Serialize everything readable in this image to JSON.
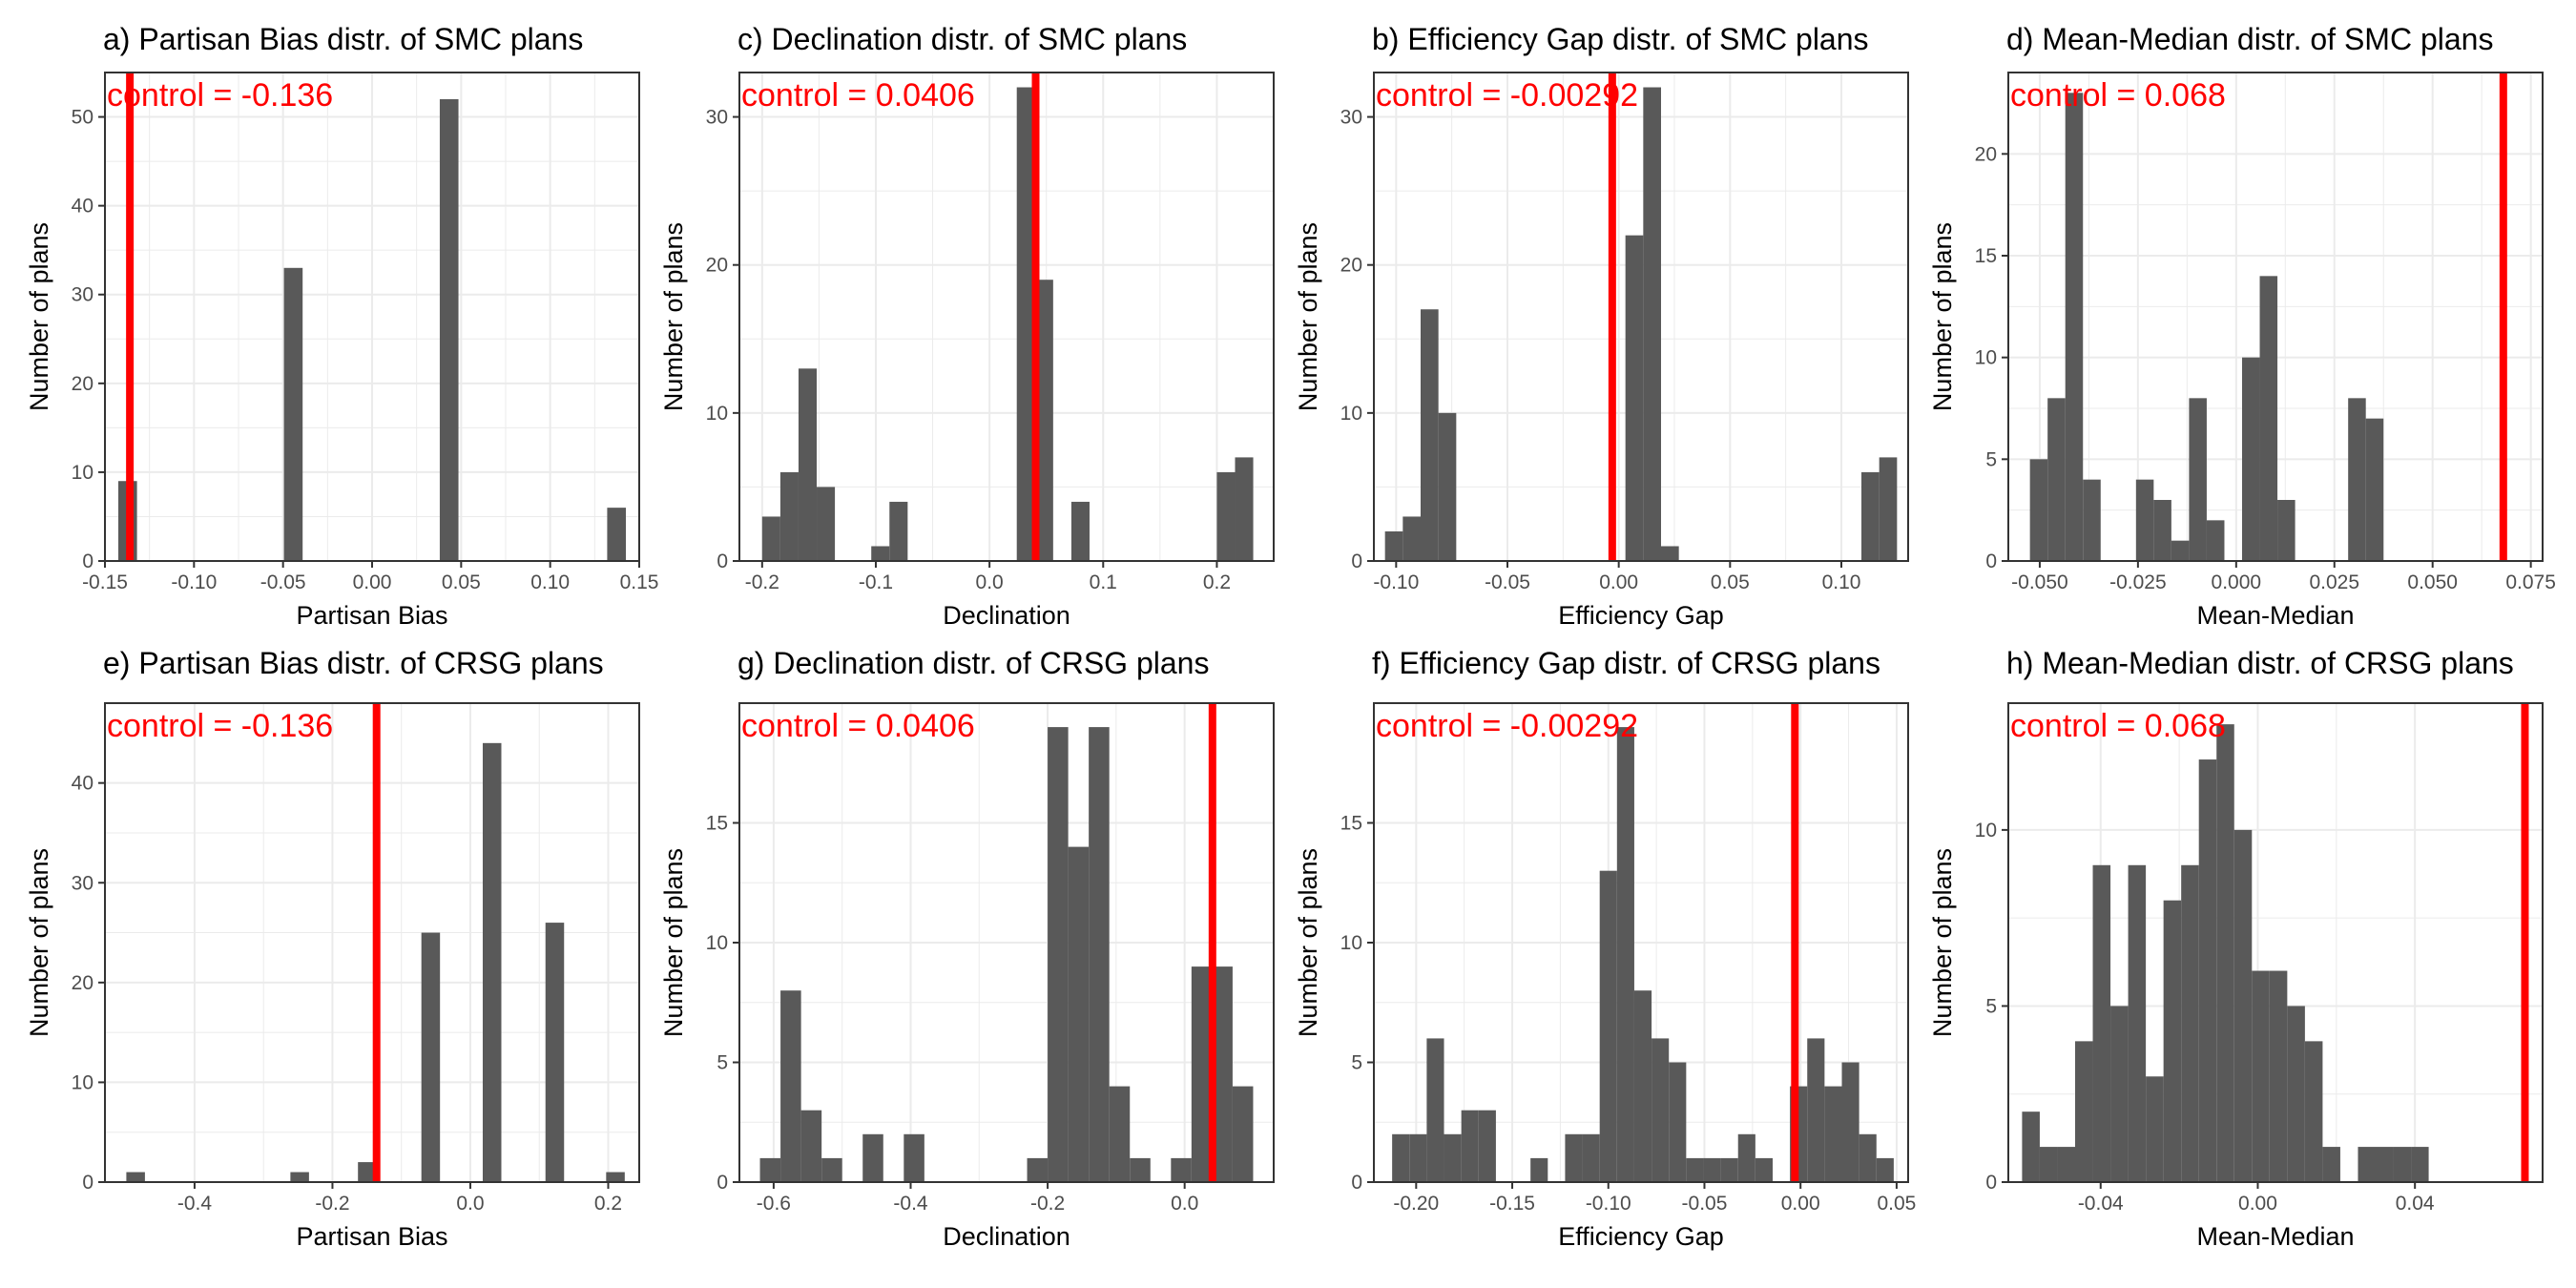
{
  "figure": {
    "background": "#ffffff"
  },
  "style": {
    "bar_color": "#595959",
    "control_color": "#ff0000",
    "grid_color": "#ebebeb",
    "panel_border": "#333333"
  },
  "chart_data": [
    {
      "type": "bar",
      "title": "a) Partisan Bias distr. of SMC plans",
      "control_label": "control = -0.136",
      "control_value": -0.136,
      "xlabel": "Partisan Bias",
      "ylabel": "Number of plans",
      "xlim": [
        -0.15,
        0.15
      ],
      "ylim": [
        0,
        55
      ],
      "xticks": [
        -0.15,
        -0.1,
        -0.05,
        0.0,
        0.05,
        0.1,
        0.15
      ],
      "xtick_labels": [
        "-0.15",
        "-0.10",
        "-0.05",
        "0.00",
        "0.05",
        "0.10",
        "0.15"
      ],
      "yticks": [
        0,
        10,
        20,
        30,
        40,
        50
      ],
      "ytick_labels": [
        "0",
        "10",
        "20",
        "30",
        "40",
        "50"
      ],
      "bars": [
        {
          "x0": -0.1425,
          "x1": -0.132,
          "count": 9
        },
        {
          "x0": -0.0495,
          "x1": -0.039,
          "count": 33
        },
        {
          "x0": 0.038,
          "x1": 0.0485,
          "count": 52
        },
        {
          "x0": 0.132,
          "x1": 0.1425,
          "count": 6
        }
      ]
    },
    {
      "type": "bar",
      "title": "c) Declination distr. of SMC plans",
      "control_label": "control = 0.0406",
      "control_value": 0.0406,
      "xlabel": "Declination",
      "ylabel": "Number of plans",
      "xlim": [
        -0.22,
        0.25
      ],
      "ylim": [
        0,
        33
      ],
      "xticks": [
        -0.2,
        -0.1,
        0.0,
        0.1,
        0.2
      ],
      "xtick_labels": [
        "-0.2",
        "-0.1",
        "0.0",
        "0.1",
        "0.2"
      ],
      "yticks": [
        0,
        10,
        20,
        30
      ],
      "ytick_labels": [
        "0",
        "10",
        "20",
        "30"
      ],
      "bars": [
        {
          "x0": -0.2,
          "x1": -0.184,
          "count": 3
        },
        {
          "x0": -0.184,
          "x1": -0.168,
          "count": 6
        },
        {
          "x0": -0.168,
          "x1": -0.152,
          "count": 13
        },
        {
          "x0": -0.152,
          "x1": -0.136,
          "count": 5
        },
        {
          "x0": -0.104,
          "x1": -0.088,
          "count": 1
        },
        {
          "x0": -0.088,
          "x1": -0.072,
          "count": 4
        },
        {
          "x0": 0.024,
          "x1": 0.04,
          "count": 32
        },
        {
          "x0": 0.04,
          "x1": 0.056,
          "count": 19
        },
        {
          "x0": 0.072,
          "x1": 0.088,
          "count": 4
        },
        {
          "x0": 0.2,
          "x1": 0.216,
          "count": 6
        },
        {
          "x0": 0.216,
          "x1": 0.232,
          "count": 7
        }
      ]
    },
    {
      "type": "bar",
      "title": "b) Efficiency Gap distr. of SMC plans",
      "control_label": "control = -0.00292",
      "control_value": -0.00292,
      "xlabel": "Efficiency Gap",
      "ylabel": "Number of plans",
      "xlim": [
        -0.11,
        0.13
      ],
      "ylim": [
        0,
        33
      ],
      "xticks": [
        -0.1,
        -0.05,
        0.0,
        0.05,
        0.1
      ],
      "xtick_labels": [
        "-0.10",
        "-0.05",
        "0.00",
        "0.05",
        "0.10"
      ],
      "yticks": [
        0,
        10,
        20,
        30
      ],
      "ytick_labels": [
        "0",
        "10",
        "20",
        "30"
      ],
      "bars": [
        {
          "x0": -0.105,
          "x1": -0.097,
          "count": 2
        },
        {
          "x0": -0.097,
          "x1": -0.089,
          "count": 3
        },
        {
          "x0": -0.089,
          "x1": -0.081,
          "count": 17
        },
        {
          "x0": -0.081,
          "x1": -0.073,
          "count": 10
        },
        {
          "x0": 0.003,
          "x1": 0.011,
          "count": 22
        },
        {
          "x0": 0.011,
          "x1": 0.019,
          "count": 32
        },
        {
          "x0": 0.019,
          "x1": 0.027,
          "count": 1
        },
        {
          "x0": 0.109,
          "x1": 0.117,
          "count": 6
        },
        {
          "x0": 0.117,
          "x1": 0.125,
          "count": 7
        }
      ]
    },
    {
      "type": "bar",
      "title": "d) Mean-Median distr. of SMC plans",
      "control_label": "control = 0.068",
      "control_value": 0.068,
      "xlabel": "Mean-Median",
      "ylabel": "Number of plans",
      "xlim": [
        -0.058,
        0.078
      ],
      "ylim": [
        0,
        24
      ],
      "xticks": [
        -0.05,
        -0.025,
        0.0,
        0.025,
        0.05,
        0.075
      ],
      "xtick_labels": [
        "-0.050",
        "-0.025",
        "0.000",
        "0.025",
        "0.050",
        "0.075"
      ],
      "yticks": [
        0,
        5,
        10,
        15,
        20
      ],
      "ytick_labels": [
        "0",
        "5",
        "10",
        "15",
        "20"
      ],
      "bars": [
        {
          "x0": -0.0525,
          "x1": -0.048,
          "count": 5
        },
        {
          "x0": -0.048,
          "x1": -0.0435,
          "count": 8
        },
        {
          "x0": -0.0435,
          "x1": -0.039,
          "count": 23
        },
        {
          "x0": -0.039,
          "x1": -0.0345,
          "count": 4
        },
        {
          "x0": -0.0255,
          "x1": -0.021,
          "count": 4
        },
        {
          "x0": -0.021,
          "x1": -0.0165,
          "count": 3
        },
        {
          "x0": -0.0165,
          "x1": -0.012,
          "count": 1
        },
        {
          "x0": -0.012,
          "x1": -0.0075,
          "count": 8
        },
        {
          "x0": -0.0075,
          "x1": -0.003,
          "count": 2
        },
        {
          "x0": 0.0015,
          "x1": 0.006,
          "count": 10
        },
        {
          "x0": 0.006,
          "x1": 0.0105,
          "count": 14
        },
        {
          "x0": 0.0105,
          "x1": 0.015,
          "count": 3
        },
        {
          "x0": 0.0285,
          "x1": 0.033,
          "count": 8
        },
        {
          "x0": 0.033,
          "x1": 0.0375,
          "count": 7
        }
      ]
    },
    {
      "type": "bar",
      "title": "e) Partisan Bias distr. of CRSG plans",
      "control_label": "control = -0.136",
      "control_value": -0.136,
      "xlabel": "Partisan Bias",
      "ylabel": "Number of plans",
      "xlim": [
        -0.53,
        0.245
      ],
      "ylim": [
        0,
        48
      ],
      "xticks": [
        -0.4,
        -0.2,
        0.0,
        0.2
      ],
      "xtick_labels": [
        "-0.4",
        "-0.2",
        "0.0",
        "0.2"
      ],
      "yticks": [
        0,
        10,
        20,
        30,
        40
      ],
      "ytick_labels": [
        "0",
        "10",
        "20",
        "30",
        "40"
      ],
      "bars": [
        {
          "x0": -0.499,
          "x1": -0.472,
          "count": 1
        },
        {
          "x0": -0.261,
          "x1": -0.234,
          "count": 1
        },
        {
          "x0": -0.163,
          "x1": -0.136,
          "count": 2
        },
        {
          "x0": -0.071,
          "x1": -0.044,
          "count": 25
        },
        {
          "x0": 0.018,
          "x1": 0.045,
          "count": 44
        },
        {
          "x0": 0.109,
          "x1": 0.136,
          "count": 26
        },
        {
          "x0": 0.197,
          "x1": 0.224,
          "count": 1
        }
      ]
    },
    {
      "type": "bar",
      "title": "g) Declination distr. of CRSG plans",
      "control_label": "control = 0.0406",
      "control_value": 0.0406,
      "xlabel": "Declination",
      "ylabel": "Number of plans",
      "xlim": [
        -0.65,
        0.13
      ],
      "ylim": [
        0,
        20
      ],
      "xticks": [
        -0.6,
        -0.4,
        -0.2,
        0.0
      ],
      "xtick_labels": [
        "-0.6",
        "-0.4",
        "-0.2",
        "0.0"
      ],
      "yticks": [
        0,
        5,
        10,
        15
      ],
      "ytick_labels": [
        "0",
        "5",
        "10",
        "15"
      ],
      "bars": [
        {
          "x0": -0.62,
          "x1": -0.59,
          "count": 1
        },
        {
          "x0": -0.59,
          "x1": -0.56,
          "count": 8
        },
        {
          "x0": -0.56,
          "x1": -0.53,
          "count": 3
        },
        {
          "x0": -0.53,
          "x1": -0.5,
          "count": 1
        },
        {
          "x0": -0.47,
          "x1": -0.44,
          "count": 2
        },
        {
          "x0": -0.41,
          "x1": -0.38,
          "count": 2
        },
        {
          "x0": -0.23,
          "x1": -0.2,
          "count": 1
        },
        {
          "x0": -0.2,
          "x1": -0.17,
          "count": 19
        },
        {
          "x0": -0.17,
          "x1": -0.14,
          "count": 14
        },
        {
          "x0": -0.14,
          "x1": -0.11,
          "count": 19
        },
        {
          "x0": -0.11,
          "x1": -0.08,
          "count": 4
        },
        {
          "x0": -0.08,
          "x1": -0.05,
          "count": 1
        },
        {
          "x0": -0.02,
          "x1": 0.01,
          "count": 1
        },
        {
          "x0": 0.01,
          "x1": 0.04,
          "count": 9
        },
        {
          "x0": 0.04,
          "x1": 0.07,
          "count": 9
        },
        {
          "x0": 0.07,
          "x1": 0.1,
          "count": 4
        }
      ]
    },
    {
      "type": "bar",
      "title": "f) Efficiency Gap distr. of CRSG plans",
      "control_label": "control = -0.00292",
      "control_value": -0.00292,
      "xlabel": "Efficiency Gap",
      "ylabel": "Number of plans",
      "xlim": [
        -0.222,
        0.056
      ],
      "ylim": [
        0,
        20
      ],
      "xticks": [
        -0.2,
        -0.15,
        -0.1,
        -0.05,
        0.0,
        0.05
      ],
      "xtick_labels": [
        "-0.20",
        "-0.15",
        "-0.10",
        "-0.05",
        "0.00",
        "0.05"
      ],
      "yticks": [
        0,
        5,
        10,
        15
      ],
      "ytick_labels": [
        "0",
        "5",
        "10",
        "15"
      ],
      "bars": [
        {
          "x0": -0.2125,
          "x1": -0.2035,
          "count": 2
        },
        {
          "x0": -0.2035,
          "x1": -0.1945,
          "count": 2
        },
        {
          "x0": -0.1945,
          "x1": -0.1855,
          "count": 6
        },
        {
          "x0": -0.1855,
          "x1": -0.1765,
          "count": 2
        },
        {
          "x0": -0.1765,
          "x1": -0.1675,
          "count": 3
        },
        {
          "x0": -0.1675,
          "x1": -0.1585,
          "count": 3
        },
        {
          "x0": -0.1405,
          "x1": -0.1315,
          "count": 1
        },
        {
          "x0": -0.1225,
          "x1": -0.1135,
          "count": 2
        },
        {
          "x0": -0.1135,
          "x1": -0.1045,
          "count": 2
        },
        {
          "x0": -0.1045,
          "x1": -0.0955,
          "count": 13
        },
        {
          "x0": -0.0955,
          "x1": -0.0865,
          "count": 19
        },
        {
          "x0": -0.0865,
          "x1": -0.0775,
          "count": 8
        },
        {
          "x0": -0.0775,
          "x1": -0.0685,
          "count": 6
        },
        {
          "x0": -0.0685,
          "x1": -0.0595,
          "count": 5
        },
        {
          "x0": -0.0595,
          "x1": -0.0505,
          "count": 1
        },
        {
          "x0": -0.0505,
          "x1": -0.0415,
          "count": 1
        },
        {
          "x0": -0.0415,
          "x1": -0.0325,
          "count": 1
        },
        {
          "x0": -0.0325,
          "x1": -0.0235,
          "count": 2
        },
        {
          "x0": -0.0235,
          "x1": -0.0145,
          "count": 1
        },
        {
          "x0": -0.0055,
          "x1": 0.0035,
          "count": 4
        },
        {
          "x0": 0.0035,
          "x1": 0.0125,
          "count": 6
        },
        {
          "x0": 0.0125,
          "x1": 0.0215,
          "count": 4
        },
        {
          "x0": 0.0215,
          "x1": 0.0305,
          "count": 5
        },
        {
          "x0": 0.0305,
          "x1": 0.0395,
          "count": 2
        },
        {
          "x0": 0.0395,
          "x1": 0.0485,
          "count": 1
        }
      ]
    },
    {
      "type": "bar",
      "title": "h) Mean-Median distr. of CRSG plans",
      "control_label": "control = 0.068",
      "control_value": 0.068,
      "xlabel": "Mean-Median",
      "ylabel": "Number of plans",
      "xlim": [
        -0.0635,
        0.0725
      ],
      "ylim": [
        0,
        13.6
      ],
      "xticks": [
        -0.04,
        0.0,
        0.04
      ],
      "xtick_labels": [
        "-0.04",
        "0.00",
        "0.04"
      ],
      "yticks": [
        0,
        5,
        10
      ],
      "ytick_labels": [
        "0",
        "5",
        "10"
      ],
      "bars": [
        {
          "x0": -0.06,
          "x1": -0.0555,
          "count": 2
        },
        {
          "x0": -0.0555,
          "x1": -0.051,
          "count": 1
        },
        {
          "x0": -0.051,
          "x1": -0.0465,
          "count": 1
        },
        {
          "x0": -0.0465,
          "x1": -0.042,
          "count": 4
        },
        {
          "x0": -0.042,
          "x1": -0.0375,
          "count": 9
        },
        {
          "x0": -0.0375,
          "x1": -0.033,
          "count": 5
        },
        {
          "x0": -0.033,
          "x1": -0.0285,
          "count": 9
        },
        {
          "x0": -0.0285,
          "x1": -0.024,
          "count": 3
        },
        {
          "x0": -0.024,
          "x1": -0.0195,
          "count": 8
        },
        {
          "x0": -0.0195,
          "x1": -0.015,
          "count": 9
        },
        {
          "x0": -0.015,
          "x1": -0.0105,
          "count": 12
        },
        {
          "x0": -0.0105,
          "x1": -0.006,
          "count": 13
        },
        {
          "x0": -0.006,
          "x1": -0.0015,
          "count": 10
        },
        {
          "x0": -0.0015,
          "x1": 0.003,
          "count": 6
        },
        {
          "x0": 0.003,
          "x1": 0.0075,
          "count": 6
        },
        {
          "x0": 0.0075,
          "x1": 0.012,
          "count": 5
        },
        {
          "x0": 0.012,
          "x1": 0.0165,
          "count": 4
        },
        {
          "x0": 0.0165,
          "x1": 0.021,
          "count": 1
        },
        {
          "x0": 0.0255,
          "x1": 0.03,
          "count": 1
        },
        {
          "x0": 0.03,
          "x1": 0.0345,
          "count": 1
        },
        {
          "x0": 0.0345,
          "x1": 0.039,
          "count": 1
        },
        {
          "x0": 0.039,
          "x1": 0.0435,
          "count": 1
        }
      ]
    }
  ]
}
